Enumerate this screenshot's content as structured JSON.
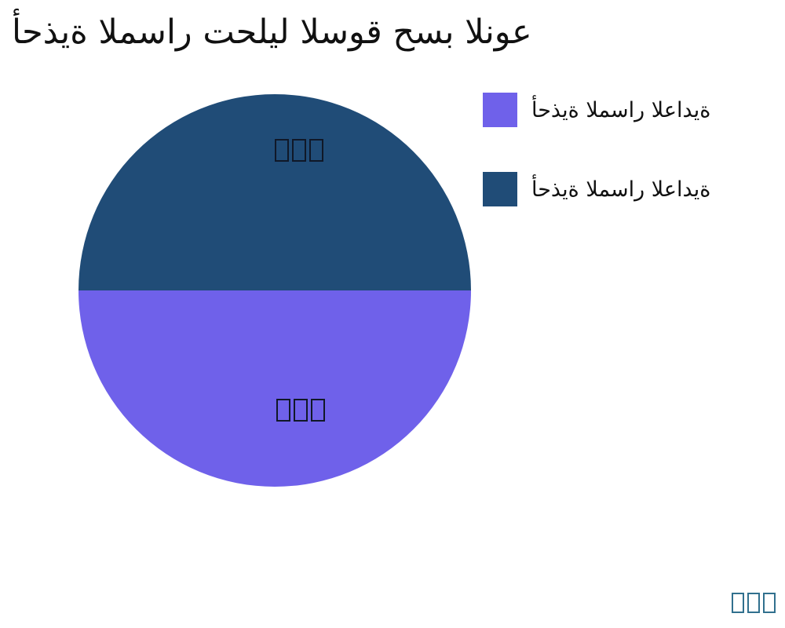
{
  "chart_data": {
    "type": "pie",
    "title": "أحذية المسار تحليل السوق حسب النوع",
    "categories": [
      "أحذية المسار العادية",
      "أحذية المسار العادية"
    ],
    "values": [
      50,
      50
    ],
    "colors": [
      "#6F61EA",
      "#204C77"
    ],
    "slice_positions": [
      "bottom-half",
      "top-half"
    ],
    "slice_value_labels": [
      "□□□",
      "□□□"
    ],
    "legend_position": "upper right",
    "background": "#ffffff"
  },
  "title": "أحذية المسار تحليل السوق حسب النوع",
  "pie": {
    "top_half_color": "#204C77",
    "bottom_half_color": "#6F61EA",
    "top_label": "□□□",
    "bottom_label": "□□□",
    "label_color": "#101828"
  },
  "legend": {
    "items": [
      {
        "label": "أحذية المسار العادية",
        "color": "#6F61EA"
      },
      {
        "label": "أحذية المسار العادية",
        "color": "#204C77"
      }
    ]
  },
  "watermark": {
    "text": "□□□",
    "color": "#31708E"
  }
}
